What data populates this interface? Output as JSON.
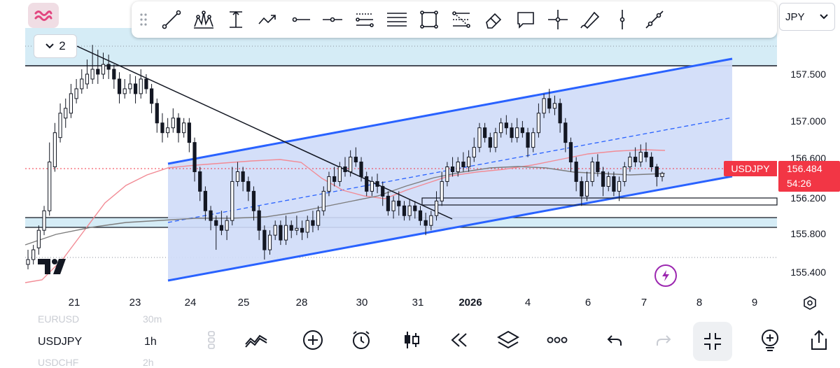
{
  "chart_data": {
    "type": "candlestick",
    "symbol": "USDJPY",
    "price_axis": {
      "ticks": [
        "157.500",
        "157.000",
        "156.600",
        "156.200",
        "155.800",
        "155.400"
      ],
      "range": [
        155.26,
        157.93
      ]
    },
    "date_axis": {
      "ticks": [
        "21",
        "23",
        "24",
        "25",
        "28",
        "30",
        "31",
        "2026",
        "4",
        "6",
        "7",
        "8",
        "9"
      ]
    },
    "current_price": "156.484",
    "countdown": "54:26",
    "candles": [
      [
        155.6,
        155.55,
        155.7,
        155.5
      ],
      [
        155.7,
        155.6,
        155.75,
        155.55
      ],
      [
        155.9,
        155.72,
        155.95,
        155.65
      ],
      [
        156.1,
        155.9,
        156.15,
        155.85
      ],
      [
        156.6,
        156.1,
        156.8,
        156.05
      ],
      [
        156.9,
        156.55,
        157.0,
        156.5
      ],
      [
        157.1,
        156.85,
        157.2,
        156.8
      ],
      [
        157.15,
        157.05,
        157.25,
        156.95
      ],
      [
        157.3,
        157.1,
        157.4,
        157.05
      ],
      [
        157.35,
        157.25,
        157.45,
        157.2
      ],
      [
        157.45,
        157.35,
        157.55,
        157.3
      ],
      [
        157.5,
        157.4,
        157.65,
        157.35
      ],
      [
        157.55,
        157.45,
        157.8,
        157.4
      ],
      [
        157.5,
        157.55,
        157.75,
        157.4
      ],
      [
        157.6,
        157.5,
        157.72,
        157.45
      ],
      [
        157.55,
        157.6,
        157.7,
        157.45
      ],
      [
        157.45,
        157.55,
        157.6,
        157.35
      ],
      [
        157.3,
        157.45,
        157.52,
        157.2
      ],
      [
        157.35,
        157.3,
        157.45,
        157.25
      ],
      [
        157.4,
        157.35,
        157.5,
        157.3
      ],
      [
        157.3,
        157.4,
        157.48,
        157.2
      ],
      [
        157.45,
        157.3,
        157.55,
        157.25
      ],
      [
        157.35,
        157.45,
        157.5,
        157.3
      ],
      [
        157.2,
        157.35,
        157.4,
        157.1
      ],
      [
        157.0,
        157.2,
        157.25,
        156.9
      ],
      [
        156.9,
        157.0,
        157.1,
        156.8
      ],
      [
        156.95,
        156.9,
        157.05,
        156.85
      ],
      [
        157.05,
        156.95,
        157.15,
        156.9
      ],
      [
        156.9,
        157.05,
        157.1,
        156.8
      ],
      [
        157.0,
        156.9,
        157.05,
        156.85
      ],
      [
        156.8,
        157.0,
        157.05,
        156.7
      ],
      [
        156.5,
        156.8,
        156.85,
        156.4
      ],
      [
        156.3,
        156.5,
        156.55,
        156.2
      ],
      [
        156.1,
        156.3,
        156.35,
        156.0
      ],
      [
        156.0,
        156.1,
        156.15,
        155.9
      ],
      [
        155.95,
        156.0,
        156.05,
        155.7
      ],
      [
        155.9,
        155.95,
        156.1,
        155.85
      ],
      [
        156.0,
        155.9,
        156.05,
        155.8
      ],
      [
        156.4,
        156.0,
        156.55,
        155.95
      ],
      [
        156.5,
        156.4,
        156.6,
        156.35
      ],
      [
        156.4,
        156.5,
        156.55,
        156.3
      ],
      [
        156.3,
        156.4,
        156.45,
        156.2
      ],
      [
        156.1,
        156.3,
        156.35,
        156.0
      ],
      [
        155.9,
        156.1,
        156.15,
        155.8
      ],
      [
        155.7,
        155.9,
        155.95,
        155.6
      ],
      [
        155.85,
        155.7,
        155.9,
        155.65
      ],
      [
        155.95,
        155.85,
        156.0,
        155.8
      ],
      [
        155.8,
        155.95,
        156.0,
        155.75
      ],
      [
        155.95,
        155.8,
        156.05,
        155.75
      ],
      [
        155.9,
        155.95,
        156.0,
        155.82
      ],
      [
        155.92,
        155.9,
        156.05,
        155.85
      ],
      [
        155.88,
        155.92,
        156.0,
        155.8
      ],
      [
        156.0,
        155.88,
        156.05,
        155.82
      ],
      [
        155.95,
        156.0,
        156.1,
        155.88
      ],
      [
        156.1,
        155.95,
        156.15,
        155.9
      ],
      [
        156.3,
        156.1,
        156.35,
        156.05
      ],
      [
        156.45,
        156.3,
        156.5,
        156.25
      ],
      [
        156.4,
        156.45,
        156.55,
        156.35
      ],
      [
        156.55,
        156.4,
        156.6,
        156.35
      ],
      [
        156.5,
        156.55,
        156.65,
        156.45
      ],
      [
        156.65,
        156.5,
        156.72,
        156.45
      ],
      [
        156.6,
        156.65,
        156.75,
        156.55
      ],
      [
        156.45,
        156.6,
        156.65,
        156.4
      ],
      [
        156.3,
        156.45,
        156.5,
        156.25
      ],
      [
        156.4,
        156.3,
        156.45,
        156.25
      ],
      [
        156.35,
        156.4,
        156.48,
        156.28
      ],
      [
        156.25,
        156.35,
        156.4,
        156.15
      ],
      [
        156.1,
        156.25,
        156.3,
        156.05
      ],
      [
        156.2,
        156.1,
        156.25,
        156.02
      ],
      [
        156.15,
        156.2,
        156.3,
        156.05
      ],
      [
        156.05,
        156.15,
        156.2,
        156.0
      ],
      [
        156.15,
        156.05,
        156.22,
        156.0
      ],
      [
        156.1,
        156.15,
        156.2,
        156.02
      ],
      [
        156.0,
        156.1,
        156.15,
        155.95
      ],
      [
        155.95,
        156.0,
        156.08,
        155.85
      ],
      [
        156.05,
        155.95,
        156.1,
        155.9
      ],
      [
        156.2,
        156.05,
        156.3,
        156.0
      ],
      [
        156.4,
        156.2,
        156.5,
        156.15
      ],
      [
        156.55,
        156.4,
        156.6,
        156.35
      ],
      [
        156.5,
        156.55,
        156.65,
        156.45
      ],
      [
        156.6,
        156.5,
        156.65,
        156.45
      ],
      [
        156.55,
        156.6,
        156.7,
        156.5
      ],
      [
        156.65,
        156.55,
        156.72,
        156.5
      ],
      [
        156.75,
        156.65,
        156.85,
        156.6
      ],
      [
        156.95,
        156.75,
        157.0,
        156.7
      ],
      [
        156.85,
        156.95,
        157.0,
        156.8
      ],
      [
        156.75,
        156.85,
        156.9,
        156.7
      ],
      [
        156.9,
        156.75,
        156.95,
        156.7
      ],
      [
        157.0,
        156.9,
        157.05,
        156.85
      ],
      [
        156.95,
        157.0,
        157.08,
        156.88
      ],
      [
        156.85,
        156.95,
        157.0,
        156.8
      ],
      [
        156.95,
        156.85,
        157.05,
        156.8
      ],
      [
        156.9,
        156.95,
        157.02,
        156.85
      ],
      [
        156.75,
        156.9,
        156.95,
        156.65
      ],
      [
        156.9,
        156.75,
        156.95,
        156.7
      ],
      [
        157.1,
        156.9,
        157.2,
        156.85
      ],
      [
        157.25,
        157.1,
        157.3,
        157.05
      ],
      [
        157.15,
        157.25,
        157.35,
        157.1
      ],
      [
        157.2,
        157.15,
        157.28,
        157.08
      ],
      [
        157.0,
        157.2,
        157.25,
        156.9
      ],
      [
        156.8,
        157.0,
        157.05,
        156.7
      ],
      [
        156.6,
        156.8,
        156.85,
        156.5
      ],
      [
        156.4,
        156.6,
        156.65,
        156.3
      ],
      [
        156.25,
        156.4,
        156.45,
        156.15
      ],
      [
        156.4,
        156.25,
        156.5,
        156.2
      ],
      [
        156.6,
        156.4,
        156.65,
        156.35
      ],
      [
        156.5,
        156.6,
        156.68,
        156.45
      ],
      [
        156.35,
        156.5,
        156.55,
        156.25
      ],
      [
        156.45,
        156.35,
        156.5,
        156.3
      ],
      [
        156.3,
        156.45,
        156.5,
        156.25
      ],
      [
        156.4,
        156.3,
        156.45,
        156.2
      ],
      [
        156.55,
        156.4,
        156.6,
        156.35
      ],
      [
        156.65,
        156.55,
        156.7,
        156.5
      ],
      [
        156.6,
        156.65,
        156.75,
        156.55
      ],
      [
        156.7,
        156.6,
        156.78,
        156.55
      ],
      [
        156.65,
        156.7,
        156.8,
        156.6
      ],
      [
        156.55,
        156.65,
        156.7,
        156.5
      ],
      [
        156.45,
        156.55,
        156.58,
        156.35
      ],
      [
        156.484,
        156.45,
        156.5,
        156.4
      ]
    ]
  },
  "toolbar": {
    "tools": [
      "trend-line",
      "pattern",
      "anchored-vwap",
      "arrow",
      "horizontal-ray",
      "horizontal-line",
      "parallel-channel",
      "fib-retracement",
      "rectangle",
      "fib-extension",
      "eraser",
      "text-callout",
      "crosshair",
      "brush",
      "vertical-line",
      "pitchfork"
    ]
  },
  "header": {
    "currency": "JPY",
    "collapse_count": "2"
  },
  "symbol_tag": {
    "label": "USDJPY",
    "price": "156.484",
    "countdown": "54:26"
  },
  "watchlist": {
    "prev": {
      "symbol": "EURUSD",
      "timeframe": "30m"
    },
    "current": {
      "symbol": "USDJPY",
      "timeframe": "1h"
    },
    "next": {
      "symbol": "USDCHF",
      "timeframe": "2h"
    }
  },
  "colors": {
    "up": "#131722",
    "down": "#131722",
    "channel": "#2962ff",
    "channel_fill": "#cfdcf8",
    "zone_fill": "#d5e9f5",
    "price_tag": "#f23645",
    "ma_red": "#f23645",
    "ma_gray": "#7a7a7a"
  }
}
